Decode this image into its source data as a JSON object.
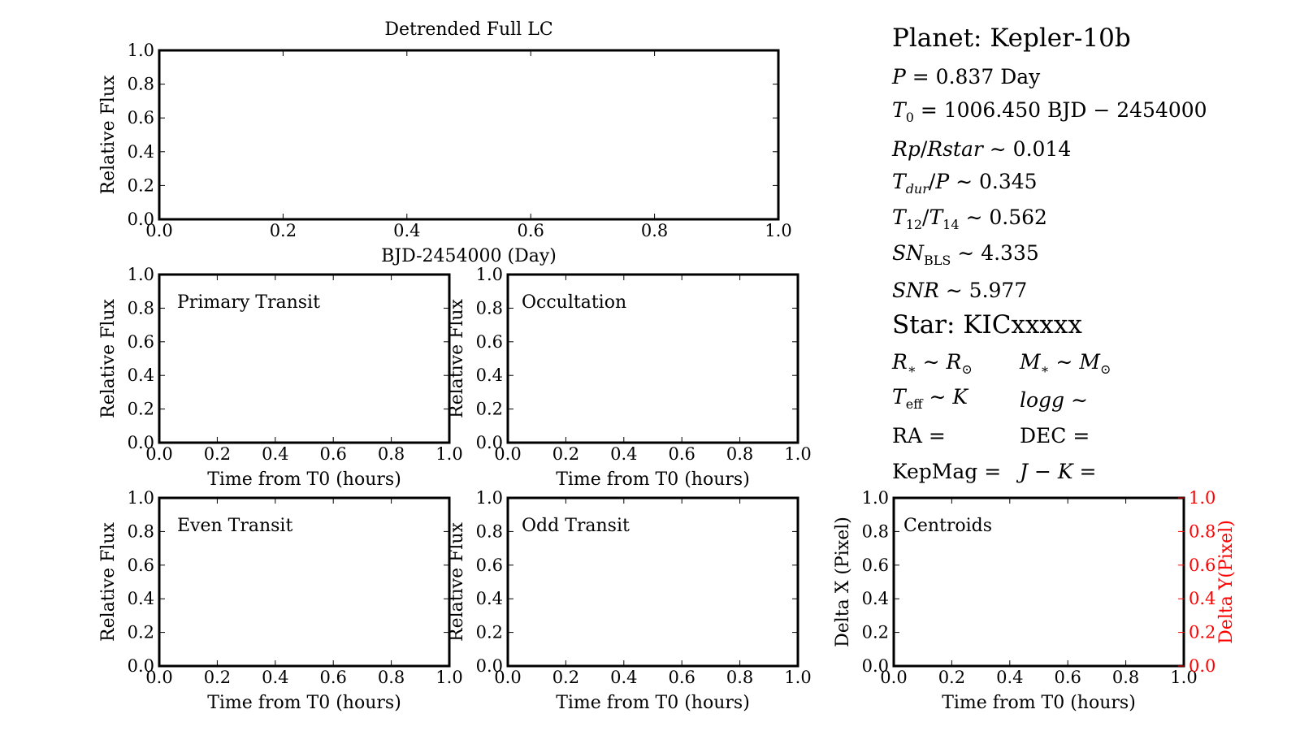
{
  "info": {
    "planet_heading": "Planet: Kepler-10b",
    "period_value": "0.837 Day",
    "t0_value": "1006.450 BJD − 2454000",
    "rp_value": "0.014",
    "tdur_value": "0.345",
    "t12_value": "0.562",
    "sn_bls_value": "4.335",
    "snr_value": "5.977",
    "star_heading": "Star: KICxxxxx",
    "ra_label": "RA =",
    "dec_label": "DEC =",
    "kepmag_label": "KepMag ="
  },
  "chart_data": [
    {
      "id": "full-lc",
      "type": "line",
      "title": "Detrended Full LC",
      "xlabel": "BJD-2454000 (Day)",
      "ylabel": "Relative Flux",
      "annotation": "",
      "xlim": [
        0,
        1
      ],
      "ylim": [
        0,
        1
      ],
      "xticks": [
        "0.0",
        "0.2",
        "0.4",
        "0.6",
        "0.8",
        "1.0"
      ],
      "yticks": [
        "0.0",
        "0.2",
        "0.4",
        "0.6",
        "0.8",
        "1.0"
      ],
      "series": []
    },
    {
      "id": "primary-transit",
      "type": "line",
      "title": "",
      "xlabel": "Time from T0 (hours)",
      "ylabel": "Relative Flux",
      "annotation": "Primary Transit",
      "xlim": [
        0,
        1
      ],
      "ylim": [
        0,
        1
      ],
      "xticks": [
        "0.0",
        "0.2",
        "0.4",
        "0.6",
        "0.8",
        "1.0"
      ],
      "yticks": [
        "0.0",
        "0.2",
        "0.4",
        "0.6",
        "0.8",
        "1.0"
      ],
      "series": []
    },
    {
      "id": "occultation",
      "type": "line",
      "title": "",
      "xlabel": "Time from T0 (hours)",
      "ylabel": "Relative Flux",
      "annotation": "Occultation",
      "xlim": [
        0,
        1
      ],
      "ylim": [
        0,
        1
      ],
      "xticks": [
        "0.0",
        "0.2",
        "0.4",
        "0.6",
        "0.8",
        "1.0"
      ],
      "yticks": [
        "0.0",
        "0.2",
        "0.4",
        "0.6",
        "0.8",
        "1.0"
      ],
      "series": []
    },
    {
      "id": "even-transit",
      "type": "line",
      "title": "",
      "xlabel": "Time from T0 (hours)",
      "ylabel": "Relative Flux",
      "annotation": "Even Transit",
      "xlim": [
        0,
        1
      ],
      "ylim": [
        0,
        1
      ],
      "xticks": [
        "0.0",
        "0.2",
        "0.4",
        "0.6",
        "0.8",
        "1.0"
      ],
      "yticks": [
        "0.0",
        "0.2",
        "0.4",
        "0.6",
        "0.8",
        "1.0"
      ],
      "series": []
    },
    {
      "id": "odd-transit",
      "type": "line",
      "title": "",
      "xlabel": "Time from T0 (hours)",
      "ylabel": "Relative Flux",
      "annotation": "Odd Transit",
      "xlim": [
        0,
        1
      ],
      "ylim": [
        0,
        1
      ],
      "xticks": [
        "0.0",
        "0.2",
        "0.4",
        "0.6",
        "0.8",
        "1.0"
      ],
      "yticks": [
        "0.0",
        "0.2",
        "0.4",
        "0.6",
        "0.8",
        "1.0"
      ],
      "series": []
    },
    {
      "id": "centroids",
      "type": "line",
      "title": "",
      "xlabel": "Time from T0 (hours)",
      "ylabel": "Delta X (Pixel)",
      "y2label": "Delta Y(Pixel)",
      "y2color": "#ff0000",
      "annotation": "Centroids",
      "xlim": [
        0,
        1
      ],
      "ylim": [
        0,
        1
      ],
      "y2lim": [
        0,
        1
      ],
      "xticks": [
        "0.0",
        "0.2",
        "0.4",
        "0.6",
        "0.8",
        "1.0"
      ],
      "yticks": [
        "0.0",
        "0.2",
        "0.4",
        "0.6",
        "0.8",
        "1.0"
      ],
      "y2ticks": [
        "0.0",
        "0.2",
        "0.4",
        "0.6",
        "0.8",
        "1.0"
      ],
      "series": []
    }
  ]
}
